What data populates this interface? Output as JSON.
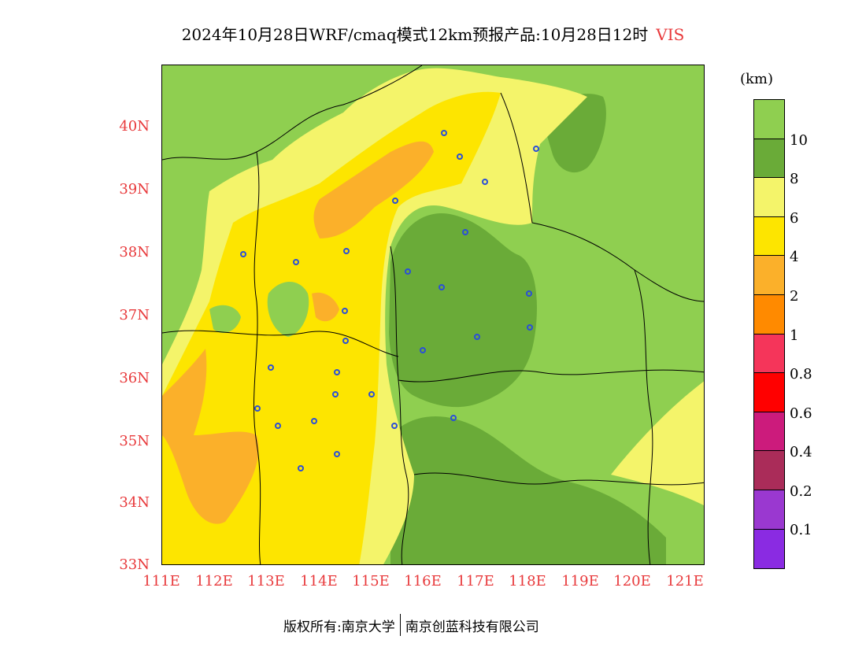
{
  "title": {
    "text": "2024年10月28日WRF/cmaq模式12km预报产品:10月28日12时",
    "variable": "VIS"
  },
  "axes": {
    "latitudes": [
      "40N",
      "39N",
      "38N",
      "37N",
      "36N",
      "35N",
      "34N",
      "33N"
    ],
    "longitudes": [
      "111E",
      "112E",
      "113E",
      "114E",
      "115E",
      "116E",
      "117E",
      "118E",
      "119E",
      "120E",
      "121E"
    ]
  },
  "legend": {
    "unit": "(km)",
    "labels": [
      "10",
      "8",
      "6",
      "4",
      "2",
      "1",
      "0.8",
      "0.6",
      "0.4",
      "0.2",
      "0.1"
    ],
    "colors": [
      "#8fcf50",
      "#6aab38",
      "#f4f46a",
      "#fde500",
      "#fbb02a",
      "#ff8a00",
      "#f5355a",
      "#ff0000",
      "#cc1b7c",
      "#aa2c59",
      "#9a38d0",
      "#8a2be2"
    ]
  },
  "map": {
    "region_colors": {
      "vis_gt10": "#8fcf50",
      "vis_8_10": "#6aab38",
      "vis_6_8": "#f4f46a",
      "vis_4_6": "#fde500",
      "vis_2_4": "#fbb02a"
    },
    "city_marker_color": "#2a4fd8"
  },
  "footer": {
    "copyright": "版权所有:南京大学",
    "company": "南京创蓝科技有限公司"
  }
}
